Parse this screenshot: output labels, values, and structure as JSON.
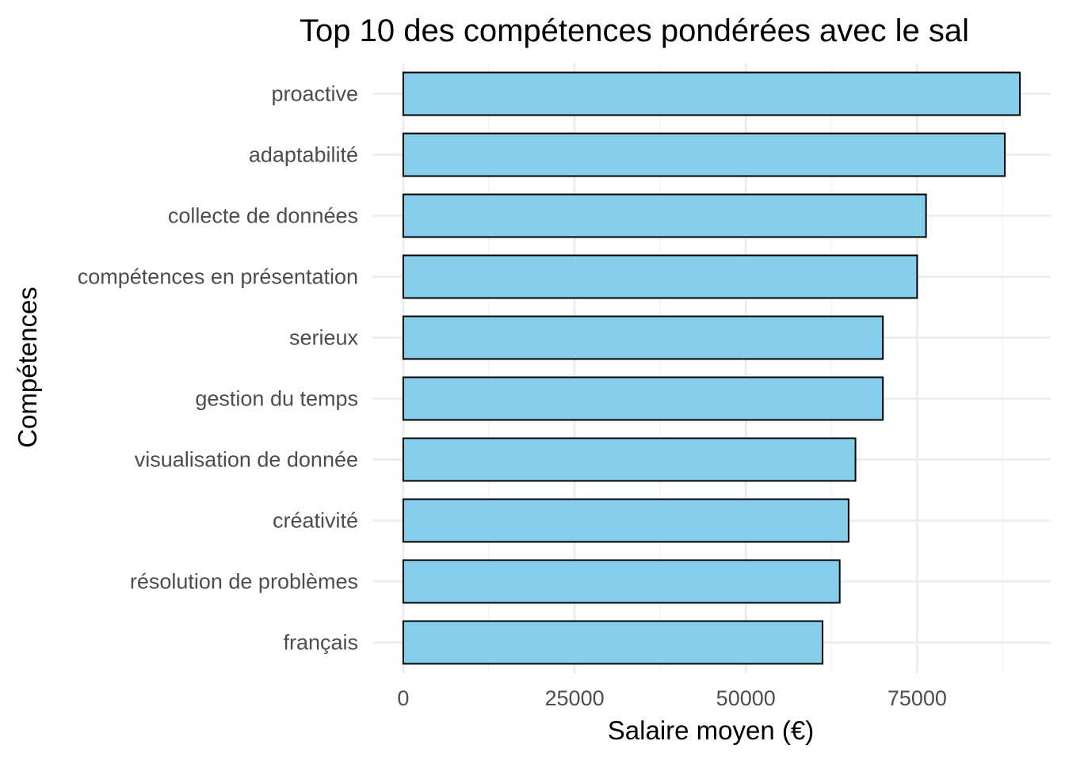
{
  "chart_data": {
    "type": "bar",
    "orientation": "horizontal",
    "title": "Top 10 des compétences pondérées avec le sal",
    "xlabel": "Salaire moyen (€)",
    "ylabel": "Compétences",
    "categories": [
      "proactive",
      "adaptabilité",
      "collecte de données",
      "compétences en présentation",
      "serieux",
      "gestion du temps",
      "visualisation de donnée",
      "créativité",
      "résolution de problèmes",
      "français"
    ],
    "values": [
      90000,
      87800,
      76300,
      75000,
      70000,
      70000,
      66000,
      65000,
      63700,
      61200
    ],
    "xlim": [
      -4500,
      94500
    ],
    "xticks": [
      "0",
      "25000",
      "50000",
      "75000"
    ],
    "xtick_values": [
      0,
      25000,
      50000,
      75000
    ],
    "grid": true,
    "bar_fill": "#87ceeb",
    "bar_stroke": "#000000"
  }
}
